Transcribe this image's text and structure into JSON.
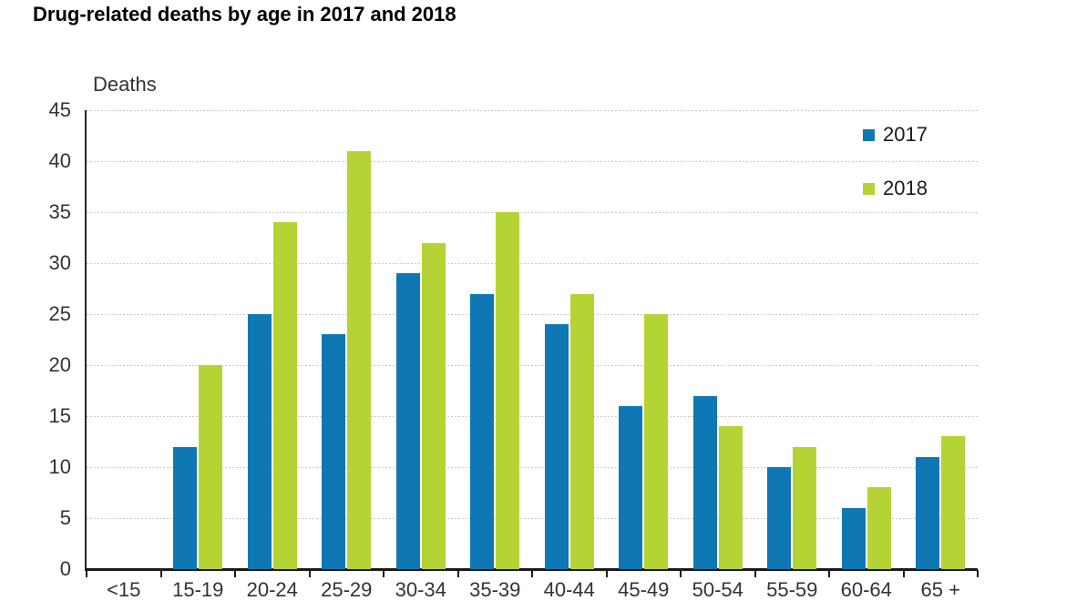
{
  "title": "Drug-related deaths by age in 2017 and 2018",
  "chart_data": {
    "type": "bar",
    "title": "Drug-related deaths by age in 2017 and 2018",
    "ylabel": "Deaths",
    "xlabel": "",
    "categories": [
      "<15",
      "15-19",
      "20-24",
      "25-29",
      "30-34",
      "35-39",
      "40-44",
      "45-49",
      "50-54",
      "55-59",
      "60-64",
      "65 +"
    ],
    "series": [
      {
        "name": "2017",
        "color": "#1077B5",
        "values": [
          0,
          12,
          25,
          23,
          29,
          27,
          24,
          16,
          17,
          10,
          6,
          11
        ]
      },
      {
        "name": "2018",
        "color": "#B5D334",
        "values": [
          0,
          20,
          34,
          41,
          32,
          35,
          27,
          25,
          14,
          12,
          8,
          13
        ]
      }
    ],
    "ylim": [
      0,
      45
    ],
    "ytick_step": 5,
    "grid": "horizontal-dashed",
    "legend_position": "top-right"
  },
  "colors": {
    "axis": "#1a1a1a",
    "grid": "#c9c9c9",
    "text": "#333333",
    "title": "#000000"
  }
}
